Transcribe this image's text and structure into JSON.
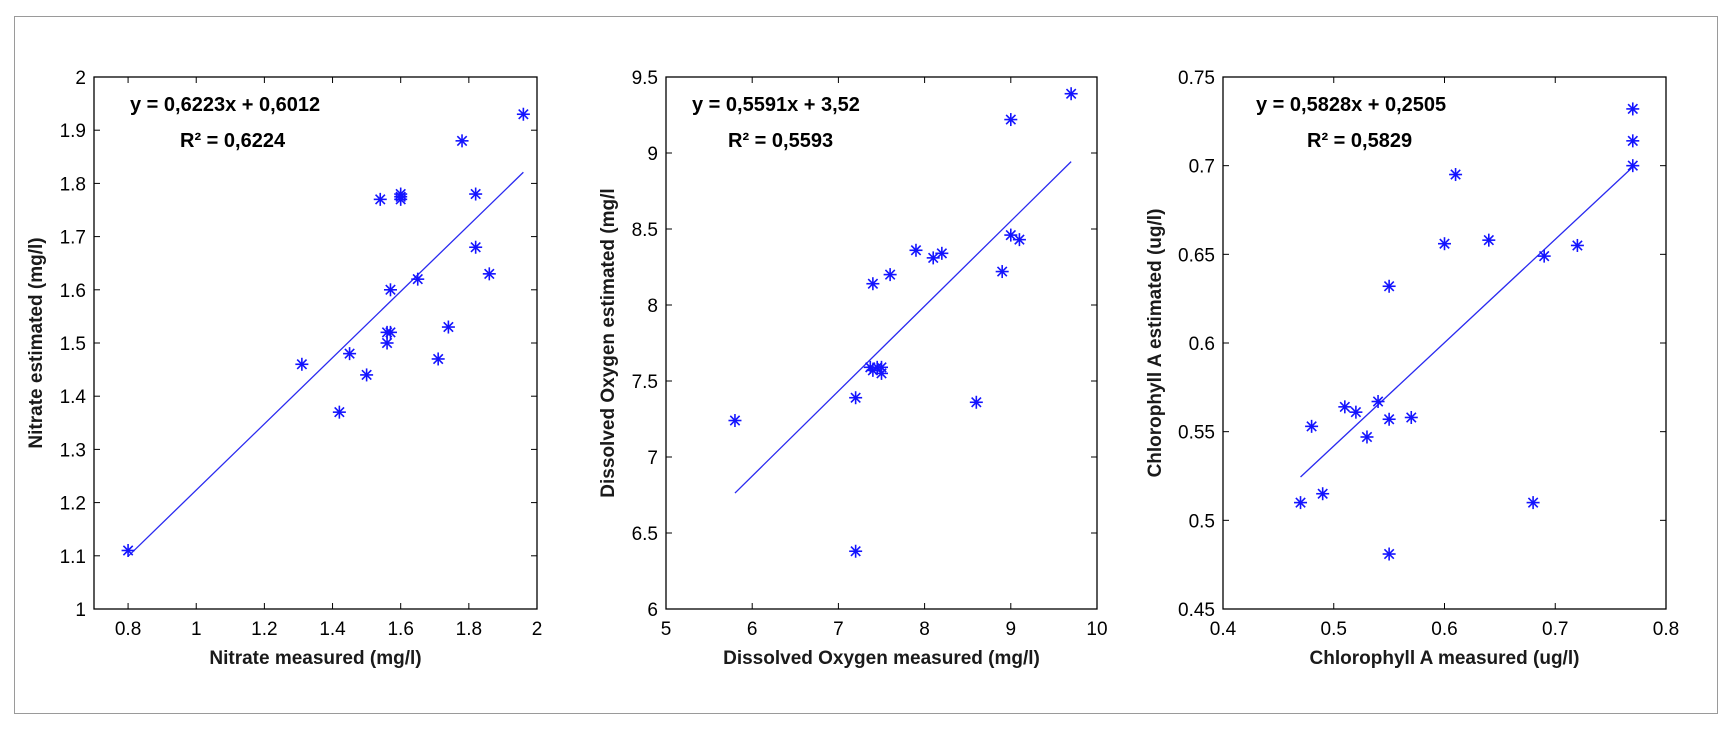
{
  "colors": {
    "marker": "#1414ff",
    "fit_line": "#2a2af0",
    "axis": "#000000",
    "frame": "#9a9a9a"
  },
  "chart_data": [
    {
      "type": "scatter",
      "xlabel": "Nitrate measured (mg/l)",
      "ylabel": "Nitrate estimated (mg/l)",
      "xlim": [
        0.7,
        2
      ],
      "ylim": [
        1,
        2
      ],
      "xticks": [
        0.8,
        1,
        1.2,
        1.4,
        1.6,
        1.8,
        2
      ],
      "yticks": [
        1,
        1.1,
        1.2,
        1.3,
        1.4,
        1.5,
        1.6,
        1.7,
        1.8,
        1.9,
        2
      ],
      "xtick_labels": [
        "0.8",
        "1",
        "1.2",
        "1.4",
        "1.6",
        "1.8",
        "2"
      ],
      "ytick_labels": [
        "1",
        "1.1",
        "1.2",
        "1.3",
        "1.4",
        "1.5",
        "1.6",
        "1.7",
        "1.8",
        "1.9",
        "2"
      ],
      "equation": "y = 0,6223x + 0,6012",
      "r2": "R² = 0,6224",
      "fit": {
        "slope": 0.6223,
        "intercept": 0.6012,
        "x_range": [
          0.8,
          1.96
        ]
      },
      "x": [
        0.8,
        1.31,
        1.42,
        1.45,
        1.5,
        1.54,
        1.56,
        1.56,
        1.57,
        1.57,
        1.6,
        1.6,
        1.6,
        1.65,
        1.71,
        1.74,
        1.78,
        1.82,
        1.82,
        1.86,
        1.96
      ],
      "y": [
        1.11,
        1.46,
        1.37,
        1.48,
        1.44,
        1.77,
        1.5,
        1.52,
        1.52,
        1.6,
        1.77,
        1.78,
        1.775,
        1.62,
        1.47,
        1.53,
        1.88,
        1.78,
        1.68,
        1.63,
        1.93
      ]
    },
    {
      "type": "scatter",
      "xlabel": "Dissolved Oxygen measured (mg/l)",
      "ylabel": "Dissolved Oxygen estimated (mg/l",
      "xlim": [
        5,
        10
      ],
      "ylim": [
        6,
        9.5
      ],
      "xticks": [
        5,
        6,
        7,
        8,
        9,
        10
      ],
      "yticks": [
        6,
        6.5,
        7,
        7.5,
        8,
        8.5,
        9,
        9.5
      ],
      "xtick_labels": [
        "5",
        "6",
        "7",
        "8",
        "9",
        "10"
      ],
      "ytick_labels": [
        "6",
        "6.5",
        "7",
        "7.5",
        "8",
        "8.5",
        "9",
        "9.5"
      ],
      "equation": "y = 0,5591x + 3,52",
      "r2": "R² = 0,5593",
      "fit": {
        "slope": 0.5591,
        "intercept": 3.52,
        "x_range": [
          5.8,
          9.7
        ]
      },
      "x": [
        5.8,
        7.2,
        7.2,
        7.37,
        7.4,
        7.4,
        7.45,
        7.5,
        7.5,
        7.6,
        7.9,
        8.1,
        8.2,
        8.6,
        8.9,
        9.0,
        9.0,
        9.1,
        9.7
      ],
      "y": [
        7.24,
        6.38,
        7.39,
        7.59,
        8.14,
        7.57,
        7.59,
        7.59,
        7.55,
        8.2,
        8.36,
        8.31,
        8.34,
        7.36,
        8.22,
        9.22,
        8.46,
        8.43,
        9.39
      ]
    },
    {
      "type": "scatter",
      "xlabel": "Chlorophyll A measured (ug/l)",
      "ylabel": "Chlorophyll A estimated (ug/l)",
      "xlim": [
        0.4,
        0.8
      ],
      "ylim": [
        0.45,
        0.75
      ],
      "xticks": [
        0.4,
        0.5,
        0.6,
        0.7,
        0.8
      ],
      "yticks": [
        0.45,
        0.5,
        0.55,
        0.6,
        0.65,
        0.7,
        0.75
      ],
      "xtick_labels": [
        "0.4",
        "0.5",
        "0.6",
        "0.7",
        "0.8"
      ],
      "ytick_labels": [
        "0.45",
        "0.5",
        "0.55",
        "0.6",
        "0.65",
        "0.7",
        "0.75"
      ],
      "equation": "y = 0,5828x + 0,2505",
      "r2": "R² = 0,5829",
      "fit": {
        "slope": 0.5828,
        "intercept": 0.2505,
        "x_range": [
          0.47,
          0.77
        ]
      },
      "x": [
        0.47,
        0.48,
        0.49,
        0.51,
        0.52,
        0.53,
        0.54,
        0.55,
        0.55,
        0.55,
        0.57,
        0.6,
        0.61,
        0.64,
        0.68,
        0.69,
        0.72,
        0.77,
        0.77,
        0.77
      ],
      "y": [
        0.51,
        0.553,
        0.515,
        0.564,
        0.561,
        0.547,
        0.567,
        0.632,
        0.557,
        0.481,
        0.558,
        0.656,
        0.695,
        0.658,
        0.51,
        0.649,
        0.655,
        0.7,
        0.714,
        0.732
      ]
    }
  ]
}
